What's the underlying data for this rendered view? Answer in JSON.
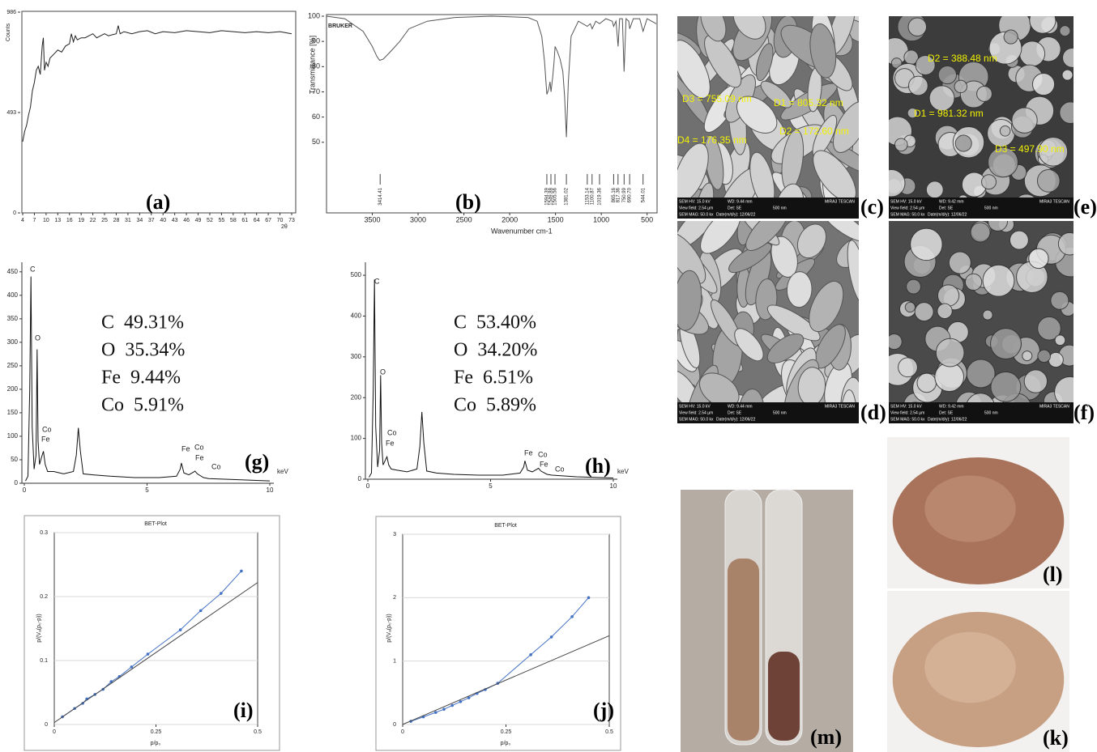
{
  "chart_data": [
    {
      "type": "line",
      "label": "(a)",
      "x_label": "2θ",
      "y_label": "Counts",
      "xlim": [
        4,
        73
      ],
      "ylim": [
        0,
        986
      ],
      "xticks": [
        4,
        7,
        10,
        13,
        16,
        19,
        22,
        25,
        28,
        31,
        34,
        37,
        40,
        43,
        46,
        49,
        52,
        55,
        58,
        61,
        64,
        67,
        70,
        73
      ],
      "yticks": [
        0,
        493,
        986
      ],
      "series": [
        {
          "color": "#222222",
          "x": [
            4,
            4.5,
            5,
            5.5,
            6,
            6.5,
            7,
            7.5,
            8,
            8.5,
            9,
            9.3,
            9.6,
            10,
            10.5,
            11,
            12,
            13,
            14,
            15,
            16,
            16.5,
            17,
            17.5,
            18,
            19,
            20,
            21,
            22,
            23,
            24,
            25,
            26,
            27,
            28,
            28.5,
            29,
            30,
            32,
            34,
            36,
            38,
            40,
            43,
            46,
            49,
            52,
            55,
            58,
            61,
            64,
            67,
            70,
            73
          ],
          "values": [
            350,
            400,
            430,
            480,
            520,
            600,
            640,
            700,
            720,
            680,
            820,
            860,
            700,
            740,
            720,
            760,
            780,
            800,
            790,
            820,
            830,
            880,
            840,
            870,
            850,
            860,
            860,
            870,
            880,
            860,
            870,
            880,
            870,
            875,
            880,
            920,
            880,
            890,
            880,
            890,
            895,
            880,
            890,
            885,
            895,
            890,
            885,
            895,
            890,
            885,
            890,
            885,
            890,
            880
          ]
        }
      ]
    },
    {
      "type": "line",
      "label": "(b)",
      "x_label": "Wavenumber cm-1",
      "y_label": "Transmittance [%]",
      "logo": "BRUKER",
      "xlim": [
        4000,
        400
      ],
      "ylim": [
        22,
        100
      ],
      "xticks": [
        3500,
        3000,
        2500,
        2000,
        1500,
        1000,
        500
      ],
      "yticks": [
        50,
        60,
        70,
        80,
        90,
        100
      ],
      "peaks": [
        3414.41,
        1594.39,
        1549.88,
        1505.56,
        1381.02,
        1153.14,
        1100.87,
        1019.36,
        865.16,
        817.36,
        750.99,
        {
          "value": 690.7,
          "label": "690.70"
        },
        544.01
      ],
      "series": [
        {
          "color": "#555555",
          "x": [
            4000,
            3800,
            3600,
            3500,
            3450,
            3420,
            3380,
            3300,
            3200,
            3100,
            2900,
            2600,
            2200,
            1800,
            1700,
            1650,
            1620,
            1600,
            1594,
            1575,
            1560,
            1549,
            1530,
            1515,
            1505,
            1480,
            1450,
            1420,
            1400,
            1381,
            1360,
            1330,
            1250,
            1153,
            1120,
            1100,
            1060,
            1019,
            950,
            880,
            865,
            840,
            817,
            800,
            770,
            751,
            730,
            700,
            690,
            650,
            580,
            544,
            500,
            450,
            400
          ],
          "values": [
            100,
            99,
            94,
            88,
            84,
            82.5,
            83,
            86,
            90,
            95,
            98,
            99.5,
            100,
            99.5,
            98,
            92,
            82,
            72,
            69,
            71,
            74,
            70,
            76,
            82,
            88,
            86,
            83,
            78,
            68,
            52,
            74,
            92,
            98,
            96,
            97,
            95,
            98,
            97,
            99,
            98,
            96,
            98,
            88,
            99,
            99,
            78,
            99,
            98,
            95,
            99,
            99,
            94,
            99,
            98,
            97
          ]
        }
      ]
    },
    {
      "type": "line",
      "label": "(g)",
      "x_label": "keV",
      "xlim": [
        0,
        10
      ],
      "ylim": [
        0,
        460
      ],
      "xticks": [
        0,
        5,
        10
      ],
      "yticks": [
        0,
        50,
        100,
        150,
        200,
        250,
        300,
        350,
        400,
        450
      ],
      "composition": [
        "C  49.31%",
        "O  35.34%",
        "Fe  9.44%",
        "Co  5.91%"
      ],
      "peak_labels": [
        "C",
        "O",
        "Co",
        "Fe",
        "Fe",
        "Co",
        "Fe",
        "Co"
      ],
      "series": [
        {
          "color": "#111111",
          "x": [
            0.05,
            0.15,
            0.22,
            0.27,
            0.32,
            0.4,
            0.48,
            0.52,
            0.56,
            0.62,
            0.7,
            0.78,
            0.85,
            0.95,
            1.2,
            1.6,
            2.0,
            2.12,
            2.2,
            2.28,
            2.4,
            2.8,
            3.5,
            4.5,
            5.5,
            6.2,
            6.35,
            6.4,
            6.5,
            6.7,
            6.9,
            6.95,
            7.05,
            7.3,
            7.5,
            8.5,
            10
          ],
          "values": [
            5,
            15,
            200,
            440,
            120,
            30,
            60,
            285,
            90,
            40,
            55,
            68,
            40,
            25,
            25,
            20,
            25,
            60,
            118,
            70,
            20,
            18,
            15,
            12,
            12,
            15,
            30,
            43,
            22,
            18,
            24,
            26,
            20,
            12,
            10,
            8,
            5
          ]
        }
      ]
    },
    {
      "type": "line",
      "label": "(h)",
      "x_label": "keV",
      "xlim": [
        0,
        10
      ],
      "ylim": [
        0,
        520
      ],
      "xticks": [
        0,
        5,
        10
      ],
      "yticks": [
        0,
        100,
        200,
        300,
        400,
        500
      ],
      "composition": [
        "C  53.40%",
        "O  34.20%",
        "Fe  6.51%",
        "Co  5.89%"
      ],
      "peak_labels": [
        "C",
        "O",
        "Co",
        "Fe",
        "Fe",
        "Co",
        "Fe",
        "Co"
      ],
      "series": [
        {
          "color": "#111111",
          "x": [
            0.05,
            0.15,
            0.22,
            0.27,
            0.32,
            0.4,
            0.48,
            0.52,
            0.56,
            0.62,
            0.7,
            0.78,
            0.85,
            0.95,
            1.2,
            1.6,
            2.0,
            2.12,
            2.2,
            2.28,
            2.4,
            2.8,
            3.5,
            4.5,
            5.5,
            6.2,
            6.35,
            6.4,
            6.5,
            6.7,
            6.9,
            6.95,
            7.05,
            7.3,
            7.5,
            8.5,
            10
          ],
          "values": [
            5,
            15,
            220,
            490,
            130,
            30,
            70,
            255,
            90,
            35,
            45,
            55,
            35,
            25,
            22,
            18,
            25,
            80,
            165,
            90,
            20,
            15,
            12,
            10,
            10,
            15,
            30,
            45,
            22,
            18,
            25,
            27,
            20,
            12,
            10,
            6,
            3
          ]
        }
      ]
    },
    {
      "type": "line",
      "label": "(i)",
      "title": "BET-Plot",
      "x_label": "p/p₀",
      "y_label": "p/(Vₐ(p₀-p))",
      "grid": true,
      "xlim": [
        0,
        0.5
      ],
      "ylim": [
        0,
        0.3
      ],
      "xticks": [
        0,
        0.25,
        0.5
      ],
      "yticks": [
        0,
        0.1,
        0.2,
        0.3
      ],
      "series": [
        {
          "color": "#4472c4",
          "markers": true,
          "x": [
            0.02,
            0.05,
            0.07,
            0.08,
            0.1,
            0.12,
            0.14,
            0.16,
            0.19,
            0.23,
            0.31,
            0.36,
            0.41,
            0.46
          ],
          "values": [
            0.012,
            0.025,
            0.033,
            0.04,
            0.047,
            0.055,
            0.067,
            0.075,
            0.09,
            0.11,
            0.148,
            0.178,
            0.205,
            0.24
          ]
        },
        {
          "color": "#444444",
          "x": [
            0,
            0.5
          ],
          "values": [
            0.003,
            0.222
          ]
        }
      ]
    },
    {
      "type": "line",
      "label": "(j)",
      "title": "BET-Plot",
      "x_label": "p/p₀",
      "y_label": "p/(Vₐ(p₀-p))",
      "grid": true,
      "xlim": [
        0,
        0.5
      ],
      "ylim": [
        0,
        3
      ],
      "xticks": [
        0,
        0.25,
        0.5
      ],
      "yticks": [
        0,
        1,
        2,
        3
      ],
      "series": [
        {
          "color": "#4472c4",
          "markers": true,
          "x": [
            0.02,
            0.05,
            0.08,
            0.1,
            0.12,
            0.14,
            0.16,
            0.18,
            0.2,
            0.23,
            0.31,
            0.36,
            0.41,
            0.45
          ],
          "values": [
            0.05,
            0.12,
            0.19,
            0.24,
            0.3,
            0.36,
            0.42,
            0.49,
            0.55,
            0.65,
            1.1,
            1.38,
            1.7,
            2.0
          ]
        },
        {
          "color": "#444444",
          "x": [
            0,
            0.5
          ],
          "values": [
            0,
            1.4
          ]
        }
      ]
    }
  ],
  "images": [
    {
      "label": "(c)",
      "annotations": [
        "D1 = 805.32 nm",
        "D2 = 172.60 nm",
        "D3 = 755.09 nm",
        "D4 = 176.35 nm"
      ],
      "footer": [
        "SEM HV: 15.0 kV",
        "WD: 9.44 mm",
        "MIRA3 TESCAN",
        "View field: 2.54 µm",
        "Det: SE",
        "500 nm",
        "SEM MAG: 50.0 kx",
        "Date(m/d/y): 12/06/22"
      ]
    },
    {
      "label": "(e)",
      "annotations": [
        "D2 = 388.48 nm",
        "D1 = 981.32 nm",
        "D3 = 497.90 nm"
      ],
      "footer": [
        "SEM HV: 15.0 kV",
        "WD: 9.42 mm",
        "MIRA3 TESCAN",
        "View field: 2.54 µm",
        "Det: SE",
        "500 nm",
        "SEM MAG: 50.0 kx",
        "Date(m/d/y): 12/06/22"
      ]
    },
    {
      "label": "(d)",
      "annotations": [],
      "footer": [
        "SEM HV: 15.0 kV",
        "WD: 9.44 mm",
        "MIRA3 TESCAN",
        "View field: 2.54 µm",
        "Det: SE",
        "500 nm",
        "SEM MAG: 50.0 kx",
        "Date(m/d/y): 12/06/22"
      ]
    },
    {
      "label": "(f)",
      "annotations": [],
      "footer": [
        "SEM HV: 15.0 kV",
        "WD: 9.42 mm",
        "MIRA3 TESCAN",
        "View field: 2.54 µm",
        "Det: SE",
        "500 nm",
        "SEM MAG: 50.0 kx",
        "Date(m/d/y): 12/06/22"
      ]
    }
  ],
  "photos": [
    {
      "label": "(m)"
    },
    {
      "label": "(l)"
    },
    {
      "label": "(k)"
    }
  ]
}
